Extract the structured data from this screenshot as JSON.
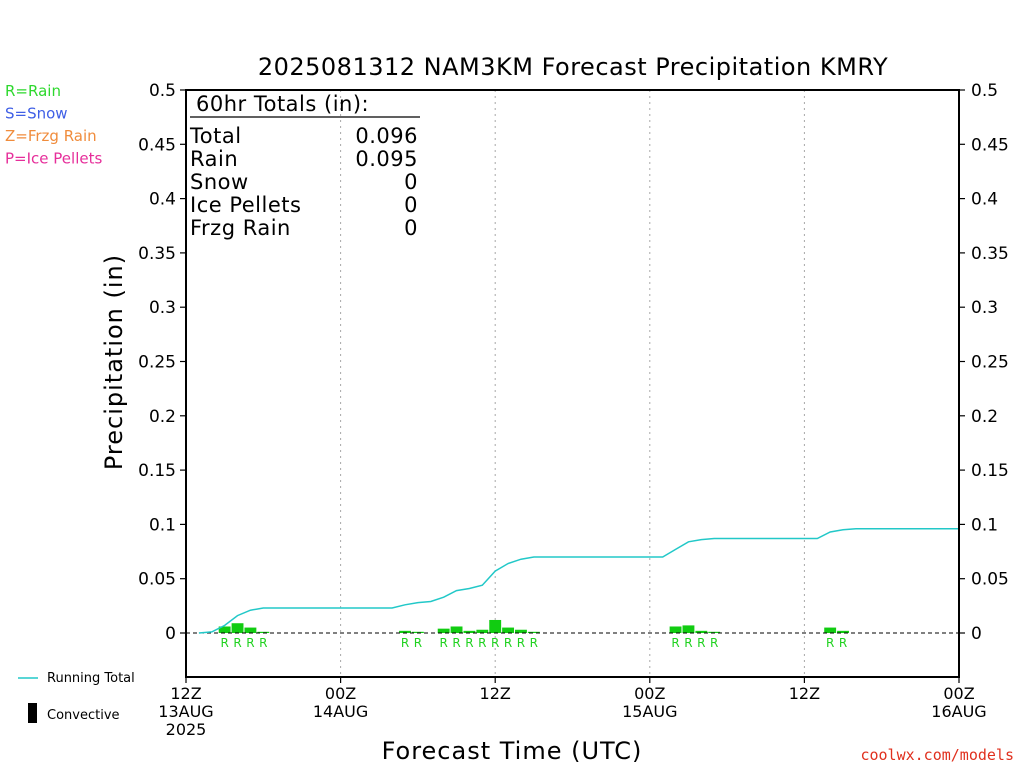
{
  "title": "2025081312 NAM3KM Forecast Precipitation KMRY",
  "legend_types": [
    {
      "text": "R=Rain",
      "color": "#2ed82e"
    },
    {
      "text": "S=Snow",
      "color": "#3f5fe6"
    },
    {
      "text": "Z=Frzg Rain",
      "color": "#f08c3c"
    },
    {
      "text": "P=Ice Pellets",
      "color": "#e62e9a"
    }
  ],
  "totals": {
    "header": "60hr Totals (in):",
    "rows": [
      {
        "label": "Total",
        "value": "0.096"
      },
      {
        "label": "Rain",
        "value": "0.095"
      },
      {
        "label": "Snow",
        "value": "0"
      },
      {
        "label": "Ice Pellets",
        "value": "0"
      },
      {
        "label": "Frzg Rain",
        "value": "0"
      }
    ]
  },
  "legend_bottom": {
    "running_total": "Running Total",
    "convective": "Convective"
  },
  "credit": "coolwx.com/models",
  "colors": {
    "running_total": "#22c8c8",
    "rain_bar": "#11cc11",
    "rain_label": "#1fd21f"
  },
  "chart_data": {
    "type": "bar",
    "xlabel": "Forecast Time (UTC)",
    "ylabel": "Precipitation (in)",
    "ylim": [
      -0.04,
      0.5
    ],
    "yticks": [
      "0.5",
      "0.45",
      "0.4",
      "0.35",
      "0.3",
      "0.25",
      "0.2",
      "0.15",
      "0.1",
      "0.05",
      "0"
    ],
    "xlim_hours": [
      0,
      60
    ],
    "x_ticks": [
      {
        "hour": 0,
        "lines": [
          "12Z",
          "13AUG",
          "2025"
        ]
      },
      {
        "hour": 12,
        "lines": [
          "00Z",
          "14AUG"
        ]
      },
      {
        "hour": 24,
        "lines": [
          "12Z"
        ]
      },
      {
        "hour": 36,
        "lines": [
          "00Z",
          "15AUG"
        ]
      },
      {
        "hour": 48,
        "lines": [
          "12Z"
        ]
      },
      {
        "hour": 60,
        "lines": [
          "00Z",
          "16AUG"
        ]
      }
    ],
    "grid_vertical": true,
    "hourly_precip": [
      {
        "hour": 3,
        "value": 0.006,
        "type": "R"
      },
      {
        "hour": 4,
        "value": 0.009,
        "type": "R"
      },
      {
        "hour": 5,
        "value": 0.005,
        "type": "R"
      },
      {
        "hour": 6,
        "value": 0.0008,
        "type": "R"
      },
      {
        "hour": 17,
        "value": 0.002,
        "type": "R"
      },
      {
        "hour": 18,
        "value": 0.0008,
        "type": "R"
      },
      {
        "hour": 20,
        "value": 0.004,
        "type": "R"
      },
      {
        "hour": 21,
        "value": 0.006,
        "type": "R"
      },
      {
        "hour": 22,
        "value": 0.002,
        "type": "R"
      },
      {
        "hour": 23,
        "value": 0.003,
        "type": "R"
      },
      {
        "hour": 24,
        "value": 0.012,
        "type": "R"
      },
      {
        "hour": 25,
        "value": 0.005,
        "type": "R"
      },
      {
        "hour": 26,
        "value": 0.003,
        "type": "R"
      },
      {
        "hour": 27,
        "value": 0.001,
        "type": "R"
      },
      {
        "hour": 38,
        "value": 0.006,
        "type": "R"
      },
      {
        "hour": 39,
        "value": 0.007,
        "type": "R"
      },
      {
        "hour": 40,
        "value": 0.002,
        "type": "R"
      },
      {
        "hour": 41,
        "value": 0.001,
        "type": "R"
      },
      {
        "hour": 50,
        "value": 0.005,
        "type": "R"
      },
      {
        "hour": 51,
        "value": 0.002,
        "type": "R"
      }
    ],
    "running_total": {
      "x": [
        1,
        2,
        3,
        4,
        5,
        6,
        7,
        16,
        17,
        18,
        19,
        20,
        21,
        22,
        23,
        24,
        25,
        26,
        27,
        28,
        37,
        38,
        39,
        40,
        41,
        49,
        50,
        51,
        52,
        60
      ],
      "y": [
        0,
        0.001,
        0.007,
        0.016,
        0.021,
        0.023,
        0.023,
        0.023,
        0.026,
        0.028,
        0.029,
        0.033,
        0.039,
        0.041,
        0.044,
        0.057,
        0.064,
        0.068,
        0.07,
        0.07,
        0.07,
        0.077,
        0.084,
        0.086,
        0.087,
        0.087,
        0.093,
        0.095,
        0.096,
        0.096
      ]
    }
  }
}
